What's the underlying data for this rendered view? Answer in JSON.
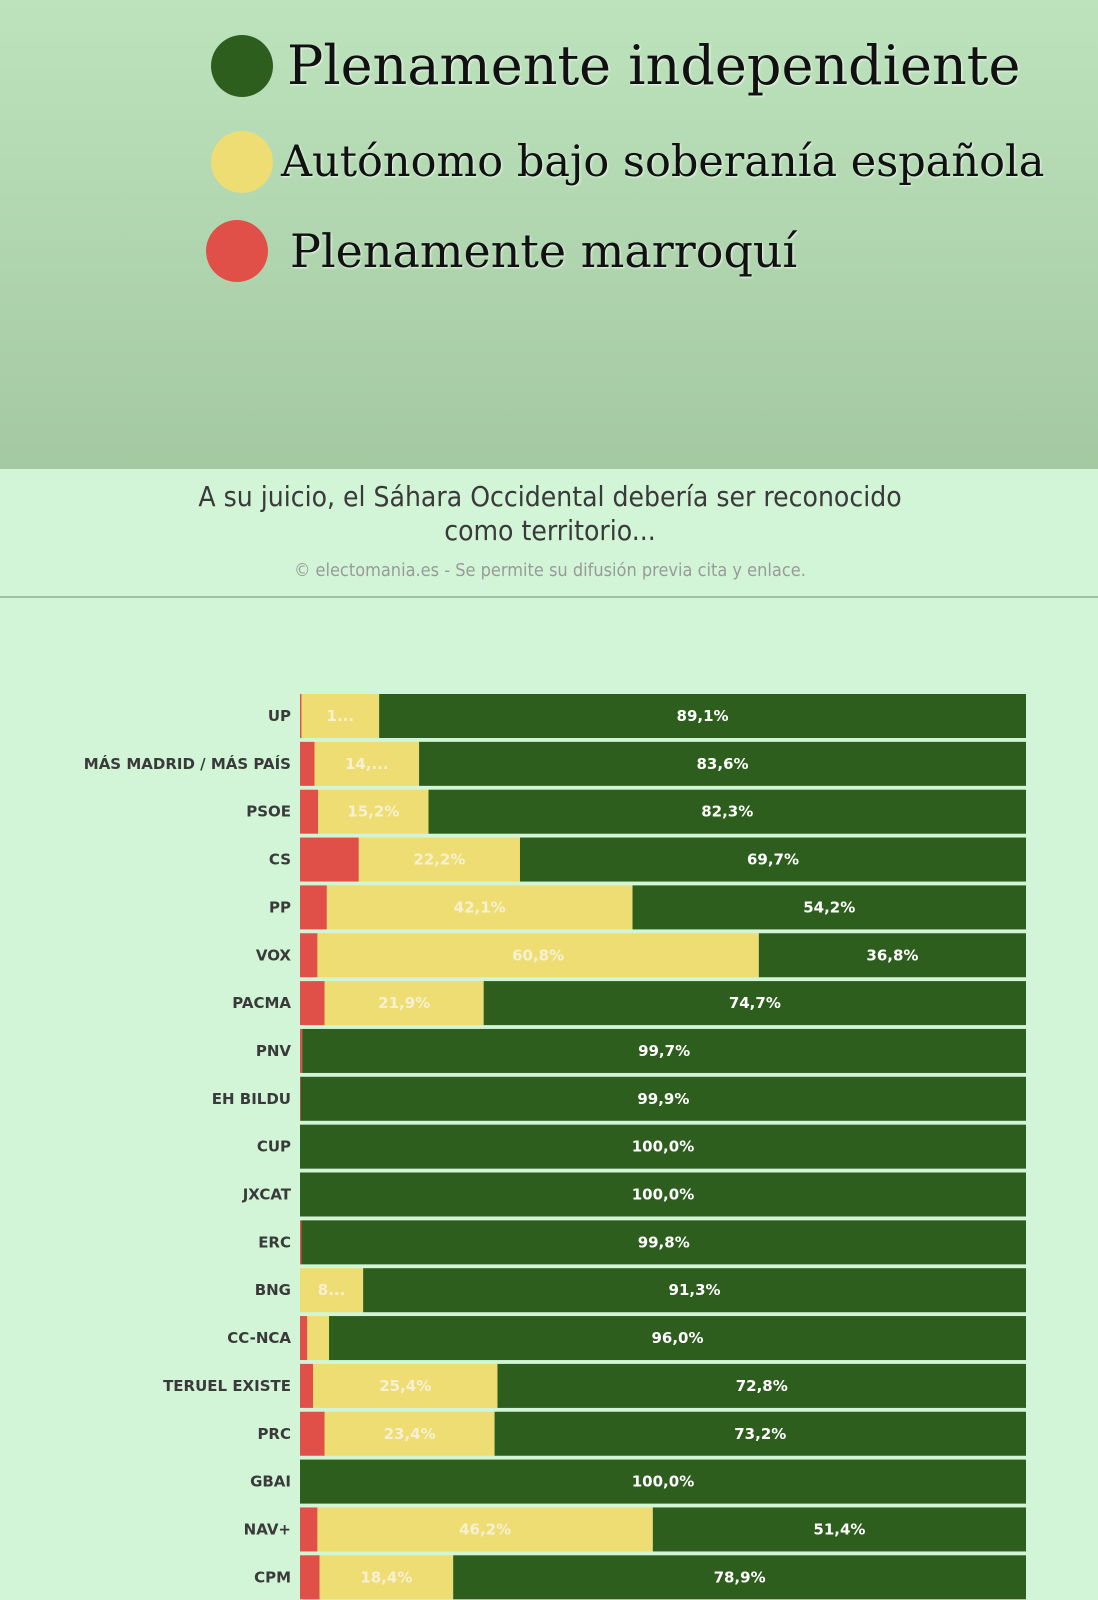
{
  "legend": {
    "items": [
      {
        "label": "Plenamente independiente",
        "color": "#2e5e1e"
      },
      {
        "label": "Autónomo bajo soberanía española",
        "color": "#eedd73"
      },
      {
        "label": "Plenamente marroquí",
        "color": "#e05048"
      }
    ]
  },
  "chart": {
    "title": "A su juicio, el Sáhara Occidental debería ser reconocido como territorio...",
    "credit": "© electomania.es - Se permite su difusión previa cita y enlace."
  },
  "chart_data": {
    "type": "bar",
    "orientation": "horizontal",
    "stacked": true,
    "normalized_percent": true,
    "xlim": [
      0,
      100
    ],
    "categories": [
      "UP",
      "MÁS MADRID / MÁS PAÍS",
      "PSOE",
      "CS",
      "PP",
      "VOX",
      "PACMA",
      "PNV",
      "EH BILDU",
      "CUP",
      "JXCAT",
      "ERC",
      "BNG",
      "CC-NCA",
      "TERUEL EXISTE",
      "PRC",
      "GBAI",
      "NAV+",
      "CPM"
    ],
    "series": [
      {
        "name": "Plenamente marroquí",
        "color": "#e05048",
        "values": [
          0.2,
          2.0,
          2.5,
          8.1,
          3.7,
          2.4,
          3.4,
          0.3,
          0.1,
          0.0,
          0.0,
          0.2,
          0.0,
          1.0,
          1.8,
          3.4,
          0.0,
          2.4,
          2.7
        ],
        "labels": [
          "",
          "",
          "",
          "",
          "",
          "",
          "",
          "",
          "",
          "",
          "",
          "",
          "",
          "",
          "",
          "",
          "",
          "",
          ""
        ]
      },
      {
        "name": "Autónomo bajo soberanía española",
        "color": "#eedd73",
        "values": [
          10.7,
          14.4,
          15.2,
          22.2,
          42.1,
          60.8,
          21.9,
          0.0,
          0.0,
          0.0,
          0.0,
          0.0,
          8.7,
          3.0,
          25.4,
          23.4,
          0.0,
          46.2,
          18.4
        ],
        "labels": [
          "1...",
          "14,...",
          "15,2%",
          "22,2%",
          "42,1%",
          "60,8%",
          "21,9%",
          "",
          "",
          "",
          "",
          "",
          "8...",
          "",
          "25,4%",
          "23,4%",
          "",
          "46,2%",
          "18,4%"
        ]
      },
      {
        "name": "Plenamente independiente",
        "color": "#2e5e1e",
        "values": [
          89.1,
          83.6,
          82.3,
          69.7,
          54.2,
          36.8,
          74.7,
          99.7,
          99.9,
          100.0,
          100.0,
          99.8,
          91.3,
          96.0,
          72.8,
          73.2,
          100.0,
          51.4,
          78.9
        ],
        "labels": [
          "89,1%",
          "83,6%",
          "82,3%",
          "69,7%",
          "54,2%",
          "36,8%",
          "74,7%",
          "99,7%",
          "99,9%",
          "100,0%",
          "100,0%",
          "99,8%",
          "91,3%",
          "96,0%",
          "72,8%",
          "73,2%",
          "100,0%",
          "51,4%",
          "78,9%"
        ]
      }
    ]
  }
}
